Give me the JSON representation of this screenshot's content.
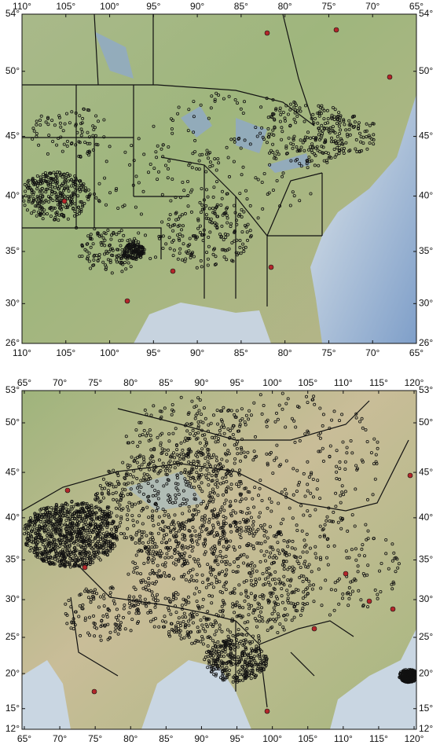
{
  "maps": [
    {
      "lon_ticks": [
        {
          "value": 110,
          "label": "110°"
        },
        {
          "value": 105,
          "label": "105°"
        },
        {
          "value": 100,
          "label": "100°"
        },
        {
          "value": 95,
          "label": "95°"
        },
        {
          "value": 90,
          "label": "90°"
        },
        {
          "value": 85,
          "label": "85°"
        },
        {
          "value": 80,
          "label": "80°"
        },
        {
          "value": 75,
          "label": "75°"
        },
        {
          "value": 70,
          "label": "70°"
        },
        {
          "value": 65,
          "label": "65°"
        }
      ],
      "lat_ticks": [
        {
          "value": 54,
          "label": "54°"
        },
        {
          "value": 50,
          "label": "50°"
        },
        {
          "value": 45,
          "label": "45°"
        },
        {
          "value": 40,
          "label": "40°"
        },
        {
          "value": 35,
          "label": "35°"
        },
        {
          "value": 30,
          "label": "30°"
        },
        {
          "value": 26,
          "label": "26°"
        }
      ]
    },
    {
      "lon_ticks": [
        {
          "value": 65,
          "label": "65°"
        },
        {
          "value": 70,
          "label": "70°"
        },
        {
          "value": 75,
          "label": "75°"
        },
        {
          "value": 80,
          "label": "80°"
        },
        {
          "value": 85,
          "label": "85°"
        },
        {
          "value": 90,
          "label": "90°"
        },
        {
          "value": 95,
          "label": "95°"
        },
        {
          "value": 100,
          "label": "100°"
        },
        {
          "value": 105,
          "label": "105°"
        },
        {
          "value": 110,
          "label": "110°"
        },
        {
          "value": 115,
          "label": "115°"
        },
        {
          "value": 120,
          "label": "120°"
        }
      ],
      "lat_ticks": [
        {
          "value": 53,
          "label": "53°"
        },
        {
          "value": 50,
          "label": "50°"
        },
        {
          "value": 45,
          "label": "45°"
        },
        {
          "value": 40,
          "label": "40°"
        },
        {
          "value": 35,
          "label": "35°"
        },
        {
          "value": 30,
          "label": "30°"
        },
        {
          "value": 25,
          "label": "25°"
        },
        {
          "value": 20,
          "label": "20°"
        },
        {
          "value": 15,
          "label": "15°"
        },
        {
          "value": 12,
          "label": "12°"
        }
      ]
    }
  ]
}
